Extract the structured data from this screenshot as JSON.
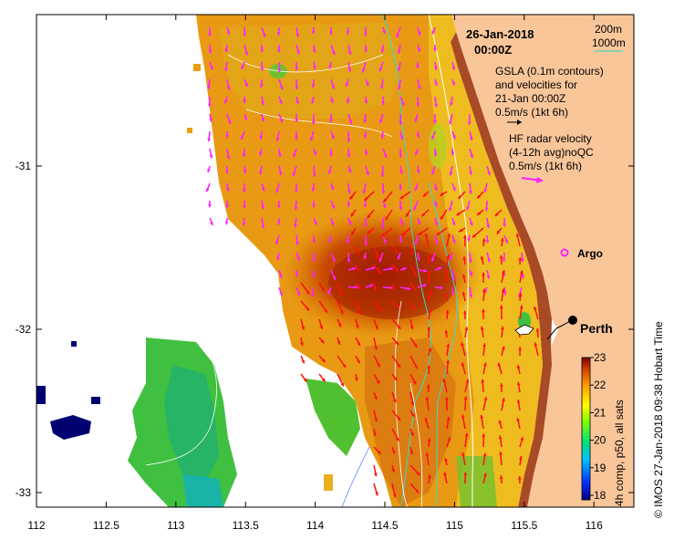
{
  "title": {
    "date": "26-Jan-2018",
    "time": "00:00Z"
  },
  "bathymetry_legend": {
    "label_200": "200m",
    "label_1000": "1000m",
    "color_200": "#ffffff",
    "color_1000": "#40d8c8"
  },
  "gsla_note": {
    "line1": "GSLA (0.1m contours)",
    "line2": "and velocities for",
    "line3": "21-Jan 00:00Z",
    "line4": "0.5m/s (1kt 6h)"
  },
  "hf_note": {
    "line1": "HF radar velocity",
    "line2": "(4-12h avg)noQC",
    "line3": "0.5m/s (1kt 6h)"
  },
  "argo_label": "Argo",
  "city_label": "Perth",
  "colorbar": {
    "label": "4h comp, p50, all sats",
    "ticks": [
      "23",
      "22",
      "21",
      "20",
      "19",
      "18"
    ]
  },
  "credit": "© IMOS 27-Jan-2018 09:38 Hobart Time",
  "x_axis_ticks": [
    "112",
    "112.5",
    "113",
    "113.5",
    "114",
    "114.5",
    "115",
    "115.5",
    "116"
  ],
  "y_axis_ticks": [
    "-31",
    "-32",
    "-33"
  ],
  "colors": {
    "land": "#f9c69a",
    "coast_dark": "#8a1e00",
    "hf_arrow": "#ff22ff",
    "alt_arrow": "#ff1010",
    "argo": "#ff22ff"
  }
}
